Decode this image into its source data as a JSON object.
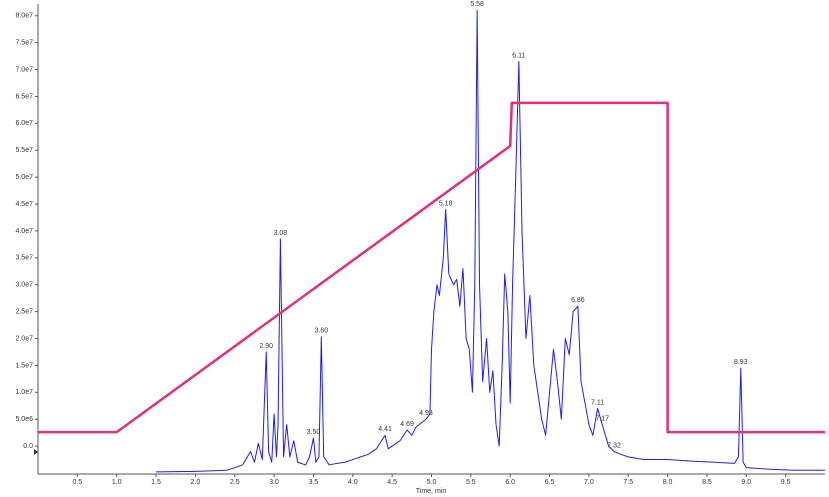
{
  "chart_data": {
    "type": "line",
    "x_label": "Time, min",
    "xlim": [
      0,
      10
    ],
    "ylim": [
      -5000000,
      82000000
    ],
    "xticks": [
      0.5,
      {
        "value": 1,
        "label": "1.0"
      },
      1.5,
      {
        "value": 2,
        "label": "2.0"
      },
      2.5,
      {
        "value": 3,
        "label": "3.0"
      },
      3.5,
      {
        "value": 4,
        "label": "4.0"
      },
      4.5,
      {
        "value": 5,
        "label": "5.0"
      },
      5.5,
      {
        "value": 6,
        "label": "6.0"
      },
      6.5,
      {
        "value": 7,
        "label": "7.0"
      },
      7.5,
      {
        "value": 8,
        "label": "8.0"
      },
      8.5,
      {
        "value": 9,
        "label": "9.0"
      },
      9.5
    ],
    "yticks": [
      {
        "value": 0,
        "label": "0.0"
      },
      {
        "value": 5000000,
        "label": "5.0e6"
      },
      {
        "value": 10000000,
        "label": "1.0e7"
      },
      {
        "value": 15000000,
        "label": "1.5e7"
      },
      {
        "value": 20000000,
        "label": "2.0e7"
      },
      {
        "value": 25000000,
        "label": "2.5e7"
      },
      {
        "value": 30000000,
        "label": "3.0e7"
      },
      {
        "value": 35000000,
        "label": "3.5e7"
      },
      {
        "value": 40000000,
        "label": "4.0e7"
      },
      {
        "value": 45000000,
        "label": "4.5e7"
      },
      {
        "value": 50000000,
        "label": "5.0e7"
      },
      {
        "value": 55000000,
        "label": "5.5e7"
      },
      {
        "value": 60000000,
        "label": "6.0e7"
      },
      {
        "value": 65000000,
        "label": "6.5e7"
      },
      {
        "value": 70000000,
        "label": "7.0e7"
      },
      {
        "value": 75000000,
        "label": "7.5e7"
      },
      {
        "value": 80000000,
        "label": "8.0e7"
      }
    ],
    "series": [
      {
        "color": "#1f1fe6",
        "width": 1,
        "x": [
          1.5,
          2.0,
          2.4,
          2.6,
          2.7,
          2.75,
          2.8,
          2.85,
          2.9,
          2.93,
          2.97,
          3.0,
          3.03,
          3.05,
          3.08,
          3.12,
          3.16,
          3.2,
          3.25,
          3.3,
          3.4,
          3.45,
          3.5,
          3.53,
          3.57,
          3.6,
          3.63,
          3.7,
          3.8,
          3.9,
          4.0,
          4.1,
          4.2,
          4.3,
          4.41,
          4.45,
          4.5,
          4.6,
          4.69,
          4.75,
          4.8,
          4.93,
          4.98,
          5.0,
          5.03,
          5.07,
          5.1,
          5.15,
          5.18,
          5.22,
          5.28,
          5.32,
          5.36,
          5.4,
          5.44,
          5.48,
          5.52,
          5.55,
          5.58,
          5.61,
          5.65,
          5.7,
          5.74,
          5.78,
          5.82,
          5.86,
          5.9,
          5.93,
          5.97,
          6.0,
          6.03,
          6.07,
          6.11,
          6.15,
          6.2,
          6.25,
          6.3,
          6.35,
          6.4,
          6.45,
          6.5,
          6.55,
          6.6,
          6.65,
          6.7,
          6.75,
          6.8,
          6.86,
          6.9,
          6.95,
          7.0,
          7.05,
          7.11,
          7.17,
          7.25,
          7.32,
          7.4,
          7.5,
          7.7,
          8.0,
          8.3,
          8.6,
          8.85,
          8.9,
          8.93,
          8.96,
          9.0,
          9.3,
          9.6,
          10.0
        ],
        "values": [
          -4800000,
          -4700000,
          -4500000,
          -3500000,
          -1000000,
          -3000000,
          500000,
          -2500000,
          17500000,
          -1000000,
          -3000000,
          6000000,
          -2000000,
          4000000,
          38500000,
          -2000000,
          4000000,
          -2000000,
          1000000,
          -3000000,
          -3500000,
          -2000000,
          1500000,
          -3000000,
          -2000000,
          20300000,
          -2000000,
          -3500000,
          -3200000,
          -3000000,
          -2500000,
          -2000000,
          -1500000,
          -500000,
          2000000,
          -500000,
          0,
          1000000,
          3000000,
          2000000,
          3500000,
          5000000,
          6000000,
          18000000,
          25000000,
          30000000,
          28000000,
          35000000,
          44000000,
          32000000,
          30000000,
          31000000,
          26000000,
          33000000,
          20000000,
          18000000,
          10000000,
          30000000,
          81000000,
          30000000,
          12000000,
          20000000,
          10000000,
          14000000,
          4000000,
          0,
          16000000,
          32000000,
          25000000,
          8000000,
          30000000,
          50000000,
          71500000,
          40000000,
          20000000,
          28000000,
          15000000,
          10000000,
          5000000,
          2000000,
          10000000,
          18000000,
          12000000,
          5000000,
          20000000,
          17000000,
          25000000,
          26000000,
          12000000,
          8000000,
          4000000,
          2000000,
          7000000,
          4000000,
          0,
          -1000000,
          -1500000,
          -2000000,
          -2500000,
          -2500000,
          -2800000,
          -3000000,
          -3200000,
          -2000000,
          14500000,
          -3000000,
          -4000000,
          -4300000,
          -4500000,
          -4500000
        ]
      },
      {
        "color": "#e0307e",
        "width": 2.5,
        "x": [
          0,
          1.0,
          6.0,
          6.02,
          8.0,
          8.0,
          10.0
        ],
        "values": [
          2600000,
          2600000,
          55800000,
          63800000,
          63800000,
          2600000,
          2600000
        ]
      }
    ],
    "annotations": [
      {
        "label": "2.90",
        "x": 2.9,
        "y": 17500000
      },
      {
        "label": "3.08",
        "x": 3.08,
        "y": 38500000
      },
      {
        "label": "3.50",
        "x": 3.5,
        "y": 1500000
      },
      {
        "label": "3.60",
        "x": 3.6,
        "y": 20300000
      },
      {
        "label": "4.41",
        "x": 4.41,
        "y": 2000000
      },
      {
        "label": "4.69",
        "x": 4.69,
        "y": 3000000
      },
      {
        "label": "4.93",
        "x": 4.93,
        "y": 5000000
      },
      {
        "label": "5.18",
        "x": 5.18,
        "y": 44000000
      },
      {
        "label": "5.58",
        "x": 5.58,
        "y": 81000000
      },
      {
        "label": "6.11",
        "x": 6.11,
        "y": 71500000
      },
      {
        "label": "6.86",
        "x": 6.86,
        "y": 26000000
      },
      {
        "label": "7.11",
        "x": 7.11,
        "y": 7000000
      },
      {
        "label": "7.17",
        "x": 7.17,
        "y": 4000000
      },
      {
        "label": "7.32",
        "x": 7.32,
        "y": -1000000
      },
      {
        "label": "8.93",
        "x": 8.93,
        "y": 14500000
      }
    ]
  }
}
